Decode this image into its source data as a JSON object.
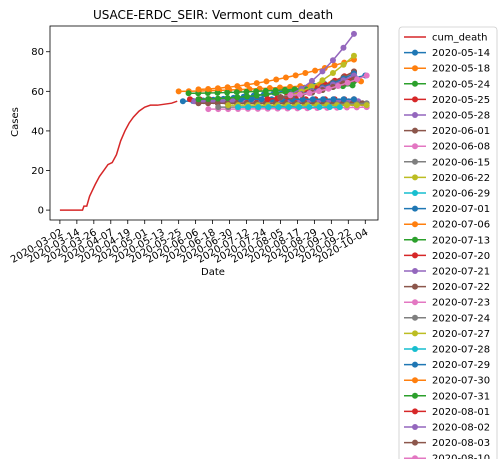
{
  "chart_data": {
    "type": "line",
    "title": "USACE-ERDC_SEIR: Vermont cum_death",
    "xlabel": "Date",
    "ylabel": "Cases",
    "ylim": [
      -5,
      93
    ],
    "xlim": [
      "2020-02-24",
      "2020-10-13"
    ],
    "y_ticks": [
      0,
      20,
      40,
      60,
      80
    ],
    "x_ticks": [
      "2020-03-02",
      "2020-03-14",
      "2020-03-26",
      "2020-04-07",
      "2020-04-19",
      "2020-05-01",
      "2020-05-13",
      "2020-05-25",
      "2020-06-06",
      "2020-06-18",
      "2020-06-30",
      "2020-07-12",
      "2020-07-24",
      "2020-08-05",
      "2020-08-17",
      "2020-08-29",
      "2020-09-10",
      "2020-09-22",
      "2020-10-04"
    ],
    "legend_position": "outside-right",
    "observed": {
      "name": "cum_death",
      "color": "#d62728",
      "x": [
        "2020-03-02",
        "2020-03-18",
        "2020-03-19",
        "2020-03-21",
        "2020-03-23",
        "2020-03-25",
        "2020-03-27",
        "2020-03-30",
        "2020-04-02",
        "2020-04-05",
        "2020-04-08",
        "2020-04-11",
        "2020-04-14",
        "2020-04-17",
        "2020-04-20",
        "2020-04-23",
        "2020-04-27",
        "2020-05-01",
        "2020-05-05",
        "2020-05-10",
        "2020-05-20",
        "2020-05-24"
      ],
      "y": [
        0,
        0,
        2,
        2,
        7,
        10,
        13,
        17,
        20,
        23,
        24,
        28,
        35,
        40,
        44,
        47,
        50,
        52,
        53,
        53,
        54,
        55
      ]
    },
    "series": [
      {
        "name": "2020-05-14",
        "color": "#1f77b4",
        "x": [
          "2020-05-28",
          "2020-10-04"
        ],
        "y": [
          55,
          68
        ]
      },
      {
        "name": "2020-05-18",
        "color": "#ff7f0e",
        "x": [
          "2020-05-25",
          "2020-10-01"
        ],
        "y": [
          60,
          65
        ]
      },
      {
        "name": "2020-05-24",
        "color": "#2ca02c",
        "x": [
          "2020-06-01",
          "2020-09-25"
        ],
        "y": [
          59,
          63
        ]
      },
      {
        "name": "2020-05-25",
        "color": "#d62728",
        "x": [
          "2020-06-02",
          "2020-09-26"
        ],
        "y": [
          56,
          56
        ]
      },
      {
        "name": "2020-05-28",
        "color": "#9467bd",
        "x": [
          "2020-06-05",
          "2020-09-29"
        ],
        "y": [
          55,
          55
        ]
      },
      {
        "name": "2020-06-01",
        "color": "#8c564b",
        "x": [
          "2020-06-08",
          "2020-10-02"
        ],
        "y": [
          54,
          54
        ]
      },
      {
        "name": "2020-06-08",
        "color": "#e377c2",
        "x": [
          "2020-06-15",
          "2020-10-05"
        ],
        "y": [
          51,
          52
        ]
      },
      {
        "name": "2020-06-15",
        "color": "#7f7f7f",
        "x": [
          "2020-06-22",
          "2020-10-05"
        ],
        "y": [
          52,
          54
        ]
      },
      {
        "name": "2020-06-22",
        "color": "#bcbd22",
        "x": [
          "2020-06-29",
          "2020-10-05"
        ],
        "y": [
          53,
          53
        ]
      },
      {
        "name": "2020-06-29",
        "color": "#17becf",
        "x": [
          "2020-07-06",
          "2020-09-16"
        ],
        "y": [
          52,
          52
        ]
      },
      {
        "name": "2020-07-01",
        "color": "#1f77b4",
        "x": [
          "2020-07-08",
          "2020-09-26"
        ],
        "y": [
          56,
          56
        ]
      },
      {
        "name": "2020-07-06",
        "color": "#ff7f0e",
        "x": [
          "2020-06-08",
          "2020-09-26"
        ],
        "y": [
          61,
          76
        ]
      },
      {
        "name": "2020-07-13",
        "color": "#2ca02c",
        "x": [
          "2020-06-08",
          "2020-09-26"
        ],
        "y": [
          56,
          65
        ]
      },
      {
        "name": "2020-07-20",
        "color": "#d62728",
        "x": [
          "2020-07-27",
          "2020-09-26"
        ],
        "y": [
          56,
          70
        ]
      },
      {
        "name": "2020-07-21",
        "color": "#9467bd",
        "x": [
          "2020-08-05",
          "2020-09-26"
        ],
        "y": [
          57,
          89
        ]
      },
      {
        "name": "2020-07-22",
        "color": "#8c564b",
        "x": [
          "2020-08-05",
          "2020-09-26"
        ],
        "y": [
          57,
          70
        ]
      },
      {
        "name": "2020-07-23",
        "color": "#e377c2",
        "x": [
          "2020-08-05",
          "2020-09-26"
        ],
        "y": [
          57,
          68
        ]
      },
      {
        "name": "2020-07-24",
        "color": "#7f7f7f",
        "x": [
          "2020-08-05",
          "2020-09-26"
        ],
        "y": [
          57,
          67
        ]
      },
      {
        "name": "2020-07-27",
        "color": "#bcbd22",
        "x": [
          "2020-08-05",
          "2020-09-26"
        ],
        "y": [
          57,
          78
        ]
      },
      {
        "name": "2020-07-28",
        "color": "#17becf",
        "x": [
          "2020-08-05",
          "2020-09-26"
        ],
        "y": [
          57,
          66
        ]
      },
      {
        "name": "2020-07-29",
        "color": "#1f77b4",
        "x": [
          "2020-08-05",
          "2020-09-26"
        ],
        "y": [
          57,
          69
        ]
      },
      {
        "name": "2020-07-30",
        "color": "#ff7f0e",
        "x": [
          "2020-08-05",
          "2020-09-26"
        ],
        "y": [
          57,
          67
        ]
      },
      {
        "name": "2020-07-31",
        "color": "#2ca02c",
        "x": [
          "2020-08-05",
          "2020-09-26"
        ],
        "y": [
          57,
          66
        ]
      },
      {
        "name": "2020-08-01",
        "color": "#d62728",
        "x": [
          "2020-08-05",
          "2020-09-26"
        ],
        "y": [
          57,
          67
        ]
      },
      {
        "name": "2020-08-02",
        "color": "#9467bd",
        "x": [
          "2020-08-05",
          "2020-09-26"
        ],
        "y": [
          57,
          68
        ]
      },
      {
        "name": "2020-08-03",
        "color": "#8c564b",
        "x": [
          "2020-08-05",
          "2020-09-26"
        ],
        "y": [
          57,
          66
        ]
      },
      {
        "name": "2020-08-10",
        "color": "#e377c2",
        "x": [
          "2020-08-12",
          "2020-10-05"
        ],
        "y": [
          58,
          68
        ]
      }
    ]
  }
}
